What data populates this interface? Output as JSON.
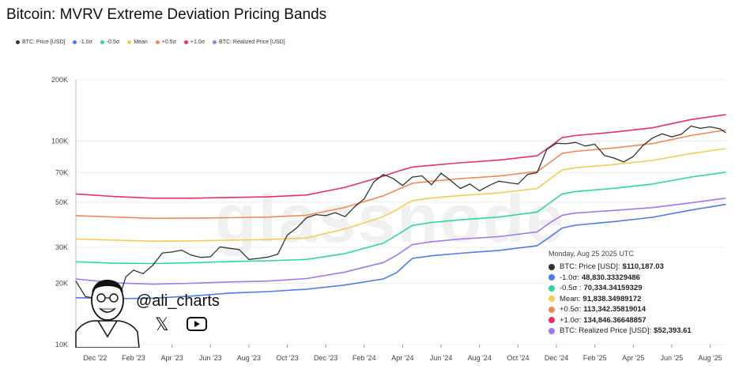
{
  "chart_data": {
    "type": "line",
    "title": "Bitcoin: MVRV Extreme Deviation Pricing Bands",
    "yscale": "log",
    "ylim": [
      10000,
      200000
    ],
    "yticks": [
      {
        "value": 200000,
        "label": "200K"
      },
      {
        "value": 100000,
        "label": "100K"
      },
      {
        "value": 70000,
        "label": "70K"
      },
      {
        "value": 50000,
        "label": "50K"
      },
      {
        "value": 30000,
        "label": "30K"
      },
      {
        "value": 20000,
        "label": "20K"
      },
      {
        "value": 10000,
        "label": "10K"
      }
    ],
    "x_range_months": [
      0,
      33.8
    ],
    "x_start": "2022-11",
    "xticks": [
      {
        "t": 1,
        "label": "Dec '22"
      },
      {
        "t": 3,
        "label": "Feb '23"
      },
      {
        "t": 5,
        "label": "Apr '23"
      },
      {
        "t": 7,
        "label": "Jun '23"
      },
      {
        "t": 9,
        "label": "Aug '23"
      },
      {
        "t": 11,
        "label": "Oct '23"
      },
      {
        "t": 13,
        "label": "Dec '23"
      },
      {
        "t": 15,
        "label": "Feb '24"
      },
      {
        "t": 17,
        "label": "Apr '24"
      },
      {
        "t": 19,
        "label": "Jun '24"
      },
      {
        "t": 21,
        "label": "Aug '24"
      },
      {
        "t": 23,
        "label": "Oct '24"
      },
      {
        "t": 25,
        "label": "Dec '24"
      },
      {
        "t": 27,
        "label": "Feb '25"
      },
      {
        "t": 29,
        "label": "Apr '25"
      },
      {
        "t": 31,
        "label": "Jun '25"
      },
      {
        "t": 33,
        "label": "Aug '25"
      }
    ],
    "series": [
      {
        "name": "BTC: Price [USD]",
        "color": "#333333",
        "t": [
          0,
          0.5,
          1,
          1.5,
          2,
          2.3,
          2.6,
          3,
          3.5,
          4,
          4.5,
          5,
          5.5,
          6,
          6.5,
          7,
          7.5,
          8,
          8.5,
          9,
          9.5,
          10,
          10.5,
          11,
          11.5,
          12,
          12.5,
          13,
          13.5,
          14,
          14.5,
          15,
          15.5,
          16,
          16.5,
          17,
          17.5,
          18,
          18.5,
          19,
          19.5,
          20,
          20.5,
          21,
          21.5,
          22,
          22.5,
          23,
          23.5,
          24,
          24.5,
          25,
          25.5,
          26,
          26.5,
          27,
          27.5,
          28,
          28.5,
          29,
          29.5,
          30,
          30.5,
          31,
          31.5,
          32,
          32.5,
          33,
          33.5,
          33.8
        ],
        "values": [
          20500,
          17200,
          16900,
          16700,
          16800,
          17500,
          21500,
          23200,
          22300,
          24500,
          28200,
          28500,
          29100,
          27500,
          26800,
          27000,
          30200,
          29700,
          29300,
          26200,
          26500,
          26900,
          27800,
          34500,
          37500,
          42000,
          43500,
          43000,
          44500,
          42500,
          47500,
          52000,
          63000,
          68500,
          65500,
          60500,
          66500,
          67500,
          61000,
          69500,
          64000,
          58500,
          61500,
          57000,
          60500,
          63500,
          62500,
          61500,
          68500,
          70000,
          91000,
          97500,
          97000,
          98500,
          94500,
          96500,
          85000,
          82500,
          79000,
          84000,
          95000,
          103500,
          108500,
          105000,
          108000,
          118500,
          115500,
          117500,
          115000,
          110187
        ]
      },
      {
        "name": "-1.0σ",
        "color": "#4f7be8",
        "t": [
          0,
          2,
          4,
          6,
          8,
          10,
          12,
          14,
          16,
          16.7,
          17.5,
          18.5,
          20,
          22,
          24,
          24.7,
          25.3,
          26,
          28,
          30,
          32,
          33.8
        ],
        "values": [
          17000,
          16800,
          16900,
          17300,
          17900,
          18200,
          18700,
          19600,
          21000,
          22600,
          26500,
          27300,
          28100,
          29000,
          30600,
          34000,
          37400,
          38600,
          40200,
          42200,
          45800,
          48830
        ]
      },
      {
        "name": "-0.5σ",
        "color": "#2fd6a3",
        "t": [
          0,
          2,
          4,
          6,
          8,
          10,
          12,
          14,
          16,
          16.7,
          17.5,
          18.5,
          20,
          22,
          24,
          24.7,
          25.3,
          26,
          28,
          30,
          32,
          33.8
        ],
        "values": [
          25500,
          25100,
          25000,
          25200,
          25600,
          25800,
          26200,
          28000,
          31500,
          34500,
          38500,
          39800,
          41000,
          42300,
          44800,
          50000,
          55000,
          56500,
          58600,
          61500,
          66500,
          70334
        ]
      },
      {
        "name": "Mean",
        "color": "#f5cc5a",
        "t": [
          0,
          2,
          4,
          6,
          8,
          10,
          12,
          14,
          16,
          16.7,
          17.5,
          18.5,
          20,
          22,
          24,
          24.7,
          25.3,
          26,
          28,
          30,
          32,
          33.8
        ],
        "values": [
          33000,
          32600,
          32200,
          32300,
          32600,
          32800,
          33400,
          37000,
          42500,
          46000,
          51000,
          52500,
          54000,
          55600,
          58500,
          65500,
          72000,
          74000,
          76700,
          80300,
          86800,
          91838
        ]
      },
      {
        "name": "+0.5σ",
        "color": "#f0895a",
        "t": [
          0,
          2,
          4,
          6,
          8,
          10,
          12,
          14,
          16,
          16.7,
          17.5,
          18.5,
          20,
          22,
          24,
          24.7,
          25.3,
          26,
          28,
          30,
          32,
          33.8
        ],
        "values": [
          43000,
          42300,
          41700,
          41800,
          42000,
          42300,
          43200,
          47200,
          53800,
          57500,
          62000,
          63500,
          65400,
          67300,
          70800,
          78900,
          87000,
          89000,
          92500,
          97200,
          106500,
          113342
        ]
      },
      {
        "name": "+1.0σ",
        "color": "#e8335f",
        "t": [
          0,
          2,
          4,
          6,
          8,
          10,
          12,
          14,
          16,
          16.7,
          17.5,
          18.5,
          20,
          22,
          24,
          24.7,
          25.3,
          26,
          28,
          30,
          32,
          33.8
        ],
        "values": [
          55000,
          53400,
          52400,
          52400,
          52800,
          53200,
          54300,
          59200,
          67200,
          70800,
          74500,
          76000,
          78200,
          80600,
          84700,
          94400,
          104000,
          106500,
          110600,
          116200,
          127500,
          134846
        ]
      },
      {
        "name": "BTC: Realized Price [USD]",
        "color": "#a078f0",
        "t": [
          0,
          2,
          4,
          6,
          8,
          10,
          12,
          14,
          16,
          16.7,
          17.5,
          18.5,
          20,
          22,
          24,
          24.7,
          25.3,
          26,
          28,
          30,
          32,
          33.8
        ],
        "values": [
          21000,
          20100,
          19800,
          20000,
          20300,
          20500,
          21100,
          22700,
          25300,
          27500,
          31000,
          32000,
          33000,
          33900,
          35800,
          39900,
          43200,
          44300,
          45600,
          47100,
          49700,
          52393
        ]
      }
    ],
    "legend": [
      "BTC: Price [USD]",
      "-1.0σ",
      "-0.5σ",
      "Mean",
      "+0.5σ",
      "+1.0σ",
      "BTC: Realized Price [USD]"
    ],
    "tooltip": {
      "date": "Monday, Aug 25 2025 UTC",
      "rows": [
        {
          "label": "BTC: Price [USD]:",
          "value": "$110,187.03",
          "color": "#333333"
        },
        {
          "label": "-1.0σ:",
          "value": "48,830.33329486",
          "color": "#4f7be8"
        },
        {
          "label": "-0.5σ :",
          "value": "70,334.34159329",
          "color": "#2fd6a3"
        },
        {
          "label": "Mean:",
          "value": "91,838.34989172",
          "color": "#f5cc5a"
        },
        {
          "label": "+0.5σ:",
          "value": "113,342.35819014",
          "color": "#f0895a"
        },
        {
          "label": "+1.0σ:",
          "value": "134,846.36648857",
          "color": "#e8335f"
        },
        {
          "label": "BTC: Realized Price [USD]:",
          "value": "$52,393.61",
          "color": "#a078f0"
        }
      ]
    },
    "watermark": "glassnode",
    "branding": {
      "handle": "@ali_charts"
    }
  }
}
